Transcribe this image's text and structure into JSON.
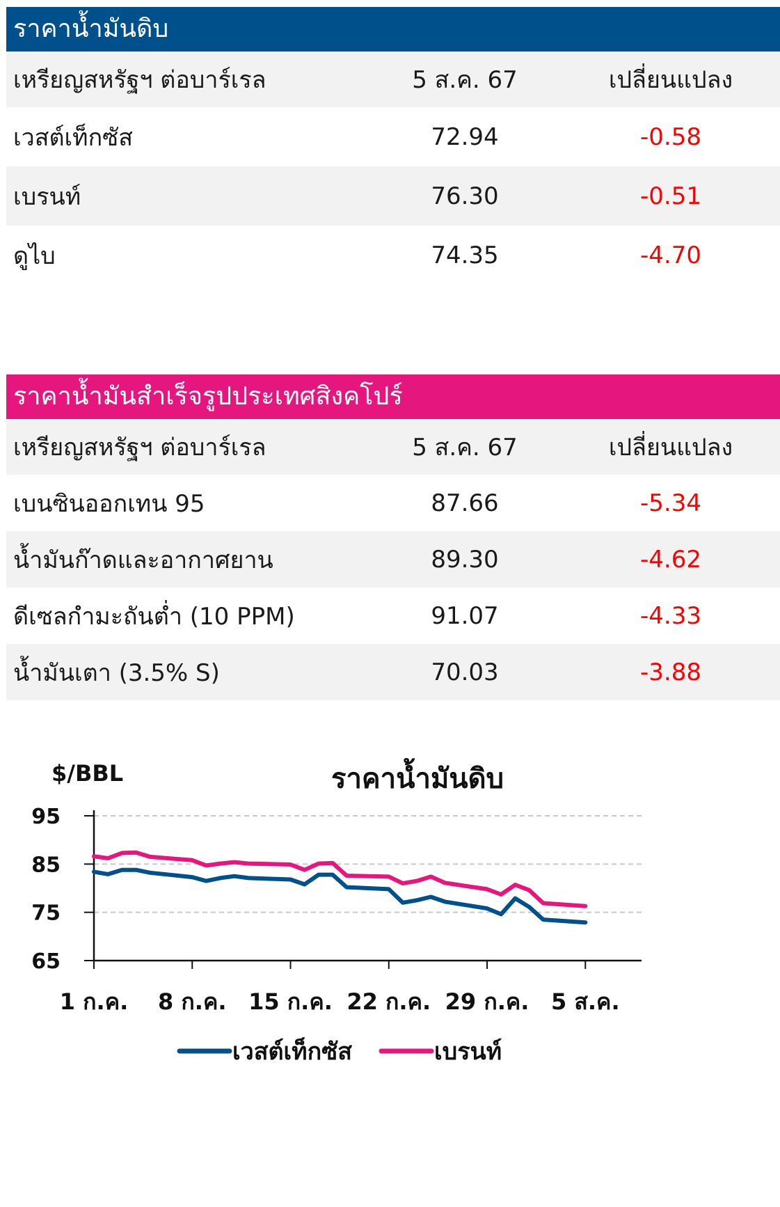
{
  "crude_table": {
    "title": "ราคาน้ำมันดิบ",
    "header": [
      "เหรียญสหรัฐฯ ต่อบาร์เรล",
      "5 ส.ค. 67",
      "เปลี่ยนแปลง"
    ],
    "rows": [
      {
        "name": "เวสต์เท็กซัส",
        "price": "72.94",
        "change": "-0.58"
      },
      {
        "name": "เบรนท์",
        "price": "76.30",
        "change": "-0.51"
      },
      {
        "name": "ดูไบ",
        "price": "74.35",
        "change": "-4.70"
      }
    ],
    "color": "#00508c"
  },
  "refined_table": {
    "title": "ราคาน้ำมันสำเร็จรูปประเทศสิงคโปร์",
    "header": [
      "เหรียญสหรัฐฯ ต่อบาร์เรล",
      "5 ส.ค. 67",
      "เปลี่ยนแปลง"
    ],
    "rows": [
      {
        "name": "เบนซินออกเทน 95",
        "price": "87.66",
        "change": "-5.34"
      },
      {
        "name": "น้ำมันก๊าดและอากาศยาน",
        "price": "89.30",
        "change": "-4.62"
      },
      {
        "name": "ดีเซลกำมะถันต่ำ (10 PPM)",
        "price": "91.07",
        "change": "-4.33"
      },
      {
        "name": "น้ำมันเตา (3.5% S)",
        "price": "70.03",
        "change": "-3.88"
      }
    ],
    "color": "#e5177e"
  },
  "chart_data": {
    "type": "line",
    "title": "ราคาน้ำมันดิบ",
    "unit_label": "$/BBL",
    "ylim": [
      65,
      95
    ],
    "yticks": [
      95,
      85,
      75,
      65
    ],
    "grid": true,
    "legend_position": "bottom",
    "x_tick_labels": [
      "1 ก.ค.",
      "8 ก.ค.",
      "15 ก.ค.",
      "22 ก.ค.",
      "29 ก.ค.",
      "5 ส.ค."
    ],
    "x_tick_days": [
      1,
      8,
      15,
      22,
      29,
      36
    ],
    "xlim": [
      1,
      40
    ],
    "series": [
      {
        "name": "เวสต์เท็กซัส",
        "color": "#00508c",
        "x": [
          1,
          2,
          3,
          4,
          5,
          8,
          9,
          10,
          11,
          12,
          15,
          16,
          17,
          18,
          19,
          22,
          23,
          24,
          25,
          26,
          29,
          30,
          31,
          32,
          33,
          36
        ],
        "y": [
          83.4,
          82.9,
          83.8,
          83.8,
          83.2,
          82.3,
          81.5,
          82.1,
          82.5,
          82.1,
          81.8,
          80.8,
          82.8,
          82.8,
          80.2,
          79.8,
          77.0,
          77.5,
          78.2,
          77.2,
          75.8,
          74.6,
          77.9,
          76.1,
          73.5,
          72.9
        ]
      },
      {
        "name": "เบรนท์",
        "color": "#e5177e",
        "x": [
          1,
          2,
          3,
          4,
          5,
          8,
          9,
          10,
          11,
          12,
          15,
          16,
          17,
          18,
          19,
          22,
          23,
          24,
          25,
          26,
          29,
          30,
          31,
          32,
          33,
          36
        ],
        "y": [
          86.6,
          86.2,
          87.3,
          87.4,
          86.5,
          85.8,
          84.7,
          85.1,
          85.4,
          85.1,
          84.9,
          83.8,
          85.1,
          85.2,
          82.6,
          82.4,
          81.0,
          81.5,
          82.4,
          81.1,
          79.8,
          78.7,
          80.7,
          79.6,
          76.9,
          76.3
        ]
      }
    ]
  }
}
